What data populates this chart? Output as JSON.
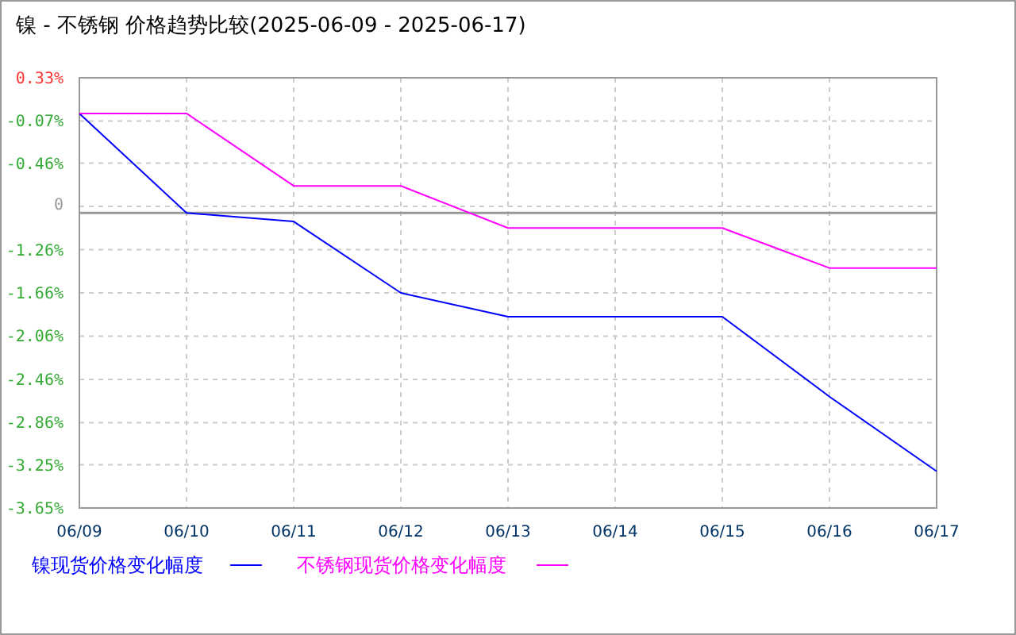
{
  "chart_data": {
    "type": "line",
    "title": "镍 - 不锈钢 价格趋势比较(2025-06-09 - 2025-06-17)",
    "categories": [
      "06/09",
      "06/10",
      "06/11",
      "06/12",
      "06/13",
      "06/14",
      "06/15",
      "06/16",
      "06/17"
    ],
    "series": [
      {
        "name": "镍现货价格变化幅度",
        "color": "#0000ff",
        "values": [
          0,
          -0.92,
          -1.0,
          -1.66,
          -1.88,
          -1.88,
          -1.88,
          -2.62,
          -3.31
        ]
      },
      {
        "name": "不锈钢现货价格变化幅度",
        "color": "#ff00ff",
        "values": [
          0,
          0,
          -0.67,
          -0.67,
          -1.06,
          -1.06,
          -1.06,
          -1.43,
          -1.43
        ]
      }
    ],
    "ylim": [
      -3.65,
      0.33
    ],
    "yticks": [
      {
        "value": 0.33,
        "label": "0.33%"
      },
      {
        "value": -0.07,
        "label": "-0.07%"
      },
      {
        "value": -0.46,
        "label": "-0.46%"
      },
      {
        "value": -0.86,
        "label": null
      },
      {
        "value": -1.26,
        "label": "-1.26%"
      },
      {
        "value": -1.66,
        "label": "-1.66%"
      },
      {
        "value": -2.06,
        "label": "-2.06%"
      },
      {
        "value": -2.46,
        "label": "-2.46%"
      },
      {
        "value": -2.86,
        "label": "-2.86%"
      },
      {
        "value": -3.25,
        "label": "-3.25%"
      },
      {
        "value": -3.65,
        "label": "-3.65%"
      }
    ],
    "ref_lines": [
      {
        "axis": "y",
        "value": -0.92,
        "color": "#999999"
      }
    ],
    "annotations": [
      "0"
    ],
    "grid": true,
    "legend": "bottom",
    "marker": "none",
    "line_style": "solid"
  }
}
